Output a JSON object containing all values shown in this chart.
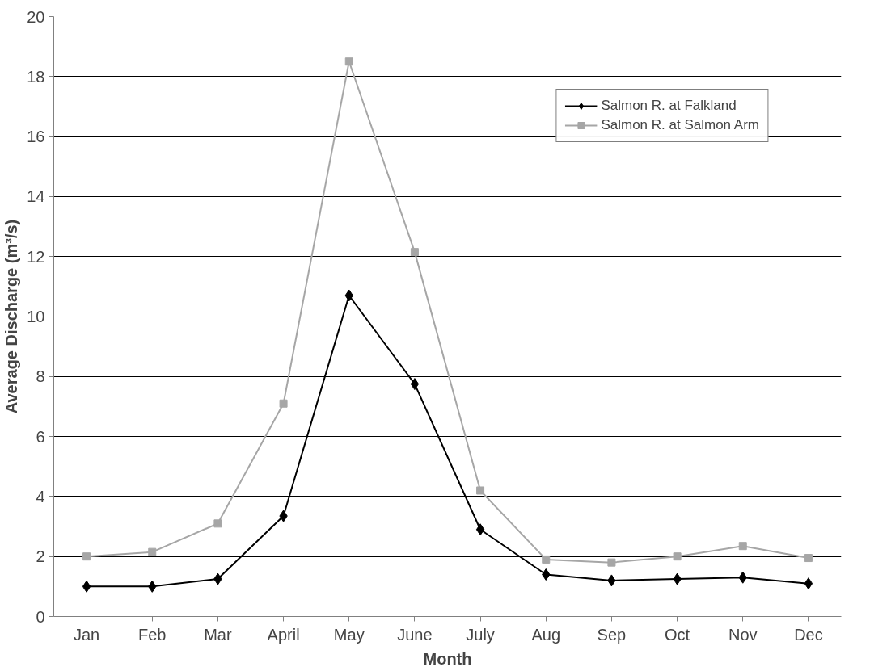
{
  "chart_data": {
    "type": "line",
    "xlabel": "Month",
    "ylabel": "Average Discharge (m³/s)",
    "categories": [
      "Jan",
      "Feb",
      "Mar",
      "April",
      "May",
      "June",
      "July",
      "Aug",
      "Sep",
      "Oct",
      "Nov",
      "Dec"
    ],
    "series": [
      {
        "name": "Salmon R. at Falkland",
        "color": "#000000",
        "marker": "diamond",
        "values": [
          1.0,
          1.0,
          1.25,
          3.35,
          10.7,
          7.75,
          2.9,
          1.4,
          1.2,
          1.25,
          1.3,
          1.1
        ]
      },
      {
        "name": "Salmon R. at Salmon Arm",
        "color": "#a6a6a6",
        "marker": "square",
        "values": [
          2.0,
          2.15,
          3.1,
          7.1,
          18.5,
          12.15,
          4.2,
          1.9,
          1.8,
          2.0,
          2.35,
          1.95
        ]
      }
    ],
    "ylim": [
      0,
      20
    ],
    "yticks": [
      0,
      2,
      4,
      6,
      8,
      10,
      12,
      14,
      16,
      18,
      20
    ],
    "grid": "y",
    "legend": "top right",
    "line_style": "solid"
  }
}
